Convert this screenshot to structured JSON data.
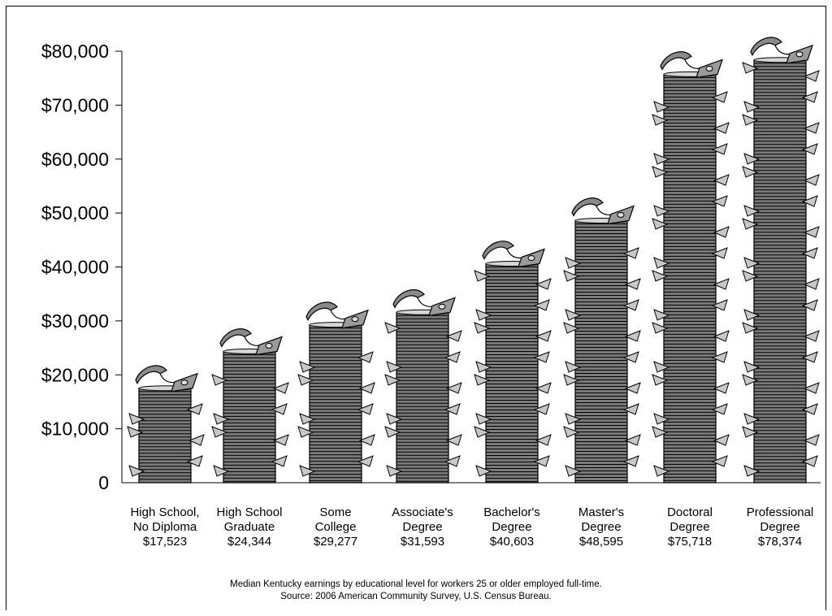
{
  "chart_data": {
    "type": "bar",
    "categories": [
      [
        "High School,",
        "No Diploma"
      ],
      [
        "High School",
        "Graduate"
      ],
      [
        "Some",
        "College"
      ],
      [
        "Associate's",
        "Degree"
      ],
      [
        "Bachelor's",
        "Degree"
      ],
      [
        "Master's",
        "Degree"
      ],
      [
        "Doctoral",
        "Degree"
      ],
      [
        "Professional",
        "Degree"
      ]
    ],
    "value_labels": [
      "$17,523",
      "$24,344",
      "$29,277",
      "$31,593",
      "$40,603",
      "$48,595",
      "$75,718",
      "$78,374"
    ],
    "values": [
      17523,
      24344,
      29277,
      31593,
      40603,
      48595,
      75718,
      78374
    ],
    "ylim": [
      0,
      80000
    ],
    "yticks": [
      0,
      10000,
      20000,
      30000,
      40000,
      50000,
      60000,
      70000,
      80000
    ],
    "ytick_labels": [
      "0",
      "$10,000",
      "$20,000",
      "$30,000",
      "$40,000",
      "$50,000",
      "$60,000",
      "$70,000",
      "$80,000"
    ],
    "grid": false,
    "mark_style": "stacked money bills with flying bill on top",
    "colors": {
      "stack": "#7a7a7a",
      "bill_light": "#c8c8c8",
      "ink": "#000000"
    }
  },
  "caption": {
    "line1": "Median Kentucky earnings by educational level for workers 25 or older employed full-time.",
    "line2": "Source: 2006 American Community Survey, U.S. Census Bureau."
  }
}
